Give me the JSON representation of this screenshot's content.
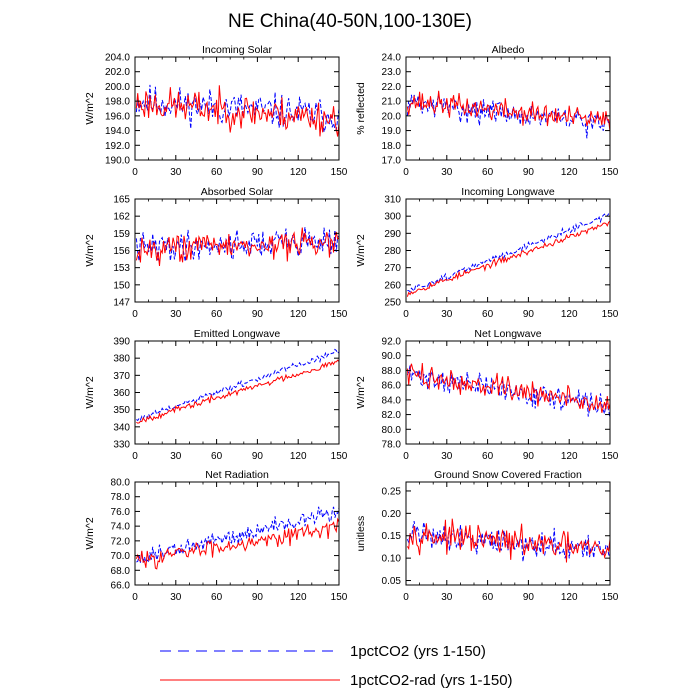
{
  "figure": {
    "title": "NE China(40-50N,100-130E)",
    "legend": [
      {
        "label": "1pctCO2 (yrs 1-150)",
        "color": "#0000ff",
        "dash": "dashed"
      },
      {
        "label": "1pctCO2-rad (yrs 1-150)",
        "color": "#ff0000",
        "dash": "solid"
      }
    ]
  },
  "chart_data": [
    {
      "type": "line",
      "title": "Incoming Solar",
      "ylabel": "W/m^2",
      "xlim": [
        0,
        150
      ],
      "ylim": [
        190,
        204
      ],
      "xticks": [
        "0",
        "30",
        "60",
        "90",
        "120",
        "150"
      ],
      "yticks": [
        "190.0",
        "192.0",
        "194.0",
        "196.0",
        "198.0",
        "200.0",
        "202.0",
        "204.0"
      ],
      "series": [
        {
          "name": "1pctCO2 (yrs 1-150)",
          "color": "#0000ff",
          "style": "dashed",
          "start": 198.0,
          "end": 196.0,
          "noise": 2.6,
          "seed": 11
        },
        {
          "name": "1pctCO2-rad (yrs 1-150)",
          "color": "#ff0000",
          "style": "solid",
          "start": 197.8,
          "end": 195.6,
          "noise": 2.6,
          "seed": 23
        }
      ]
    },
    {
      "type": "line",
      "title": "Albedo",
      "ylabel": "% reflected",
      "xlim": [
        0,
        150
      ],
      "ylim": [
        17,
        24
      ],
      "xticks": [
        "0",
        "30",
        "60",
        "90",
        "120",
        "150"
      ],
      "yticks": [
        "17.0",
        "18.0",
        "19.0",
        "20.0",
        "21.0",
        "22.0",
        "23.0",
        "24.0"
      ],
      "series": [
        {
          "name": "1pctCO2 (yrs 1-150)",
          "color": "#0000ff",
          "style": "dashed",
          "start": 20.9,
          "end": 19.4,
          "noise": 0.9,
          "seed": 31
        },
        {
          "name": "1pctCO2-rad (yrs 1-150)",
          "color": "#ff0000",
          "style": "solid",
          "start": 21.0,
          "end": 19.6,
          "noise": 0.9,
          "seed": 37
        }
      ]
    },
    {
      "type": "line",
      "title": "Absorbed Solar",
      "ylabel": "W/m^2",
      "xlim": [
        0,
        150
      ],
      "ylim": [
        147,
        165
      ],
      "xticks": [
        "0",
        "30",
        "60",
        "90",
        "120",
        "150"
      ],
      "yticks": [
        "147",
        "150",
        "153",
        "156",
        "159",
        "162",
        "165"
      ],
      "series": [
        {
          "name": "1pctCO2 (yrs 1-150)",
          "color": "#0000ff",
          "style": "dashed",
          "start": 156.5,
          "end": 157.8,
          "noise": 2.8,
          "seed": 41
        },
        {
          "name": "1pctCO2-rad (yrs 1-150)",
          "color": "#ff0000",
          "style": "solid",
          "start": 156.3,
          "end": 157.4,
          "noise": 2.8,
          "seed": 43
        }
      ]
    },
    {
      "type": "line",
      "title": "Incoming Longwave",
      "ylabel": "W/m^2",
      "xlim": [
        0,
        150
      ],
      "ylim": [
        250,
        310
      ],
      "xticks": [
        "0",
        "30",
        "60",
        "90",
        "120",
        "150"
      ],
      "yticks": [
        "250",
        "260",
        "270",
        "280",
        "290",
        "300",
        "310"
      ],
      "series": [
        {
          "name": "1pctCO2 (yrs 1-150)",
          "color": "#0000ff",
          "style": "dashed",
          "start": 256,
          "end": 301,
          "noise": 2.0,
          "seed": 51
        },
        {
          "name": "1pctCO2-rad (yrs 1-150)",
          "color": "#ff0000",
          "style": "solid",
          "start": 255,
          "end": 296,
          "noise": 2.0,
          "seed": 53
        }
      ]
    },
    {
      "type": "line",
      "title": "Emitted Longwave",
      "ylabel": "W/m^2",
      "xlim": [
        0,
        150
      ],
      "ylim": [
        330,
        390
      ],
      "xticks": [
        "0",
        "30",
        "60",
        "90",
        "120",
        "150"
      ],
      "yticks": [
        "330",
        "340",
        "350",
        "360",
        "370",
        "380",
        "390"
      ],
      "series": [
        {
          "name": "1pctCO2 (yrs 1-150)",
          "color": "#0000ff",
          "style": "dashed",
          "start": 344,
          "end": 384,
          "noise": 2.0,
          "seed": 61
        },
        {
          "name": "1pctCO2-rad (yrs 1-150)",
          "color": "#ff0000",
          "style": "solid",
          "start": 343,
          "end": 378,
          "noise": 2.0,
          "seed": 67
        }
      ]
    },
    {
      "type": "line",
      "title": "Net Longwave",
      "ylabel": "W/m^2",
      "xlim": [
        0,
        150
      ],
      "ylim": [
        78,
        92
      ],
      "xticks": [
        "0",
        "30",
        "60",
        "90",
        "120",
        "150"
      ],
      "yticks": [
        "78.0",
        "80.0",
        "82.0",
        "84.0",
        "86.0",
        "88.0",
        "90.0",
        "92.0"
      ],
      "series": [
        {
          "name": "1pctCO2 (yrs 1-150)",
          "color": "#0000ff",
          "style": "dashed",
          "start": 87.5,
          "end": 83.0,
          "noise": 1.8,
          "seed": 71
        },
        {
          "name": "1pctCO2-rad (yrs 1-150)",
          "color": "#ff0000",
          "style": "solid",
          "start": 87.5,
          "end": 83.2,
          "noise": 1.8,
          "seed": 73
        }
      ]
    },
    {
      "type": "line",
      "title": "Net Radiation",
      "ylabel": "W/m^2",
      "xlim": [
        0,
        150
      ],
      "ylim": [
        66,
        80
      ],
      "xticks": [
        "0",
        "30",
        "60",
        "90",
        "120",
        "150"
      ],
      "yticks": [
        "66.0",
        "68.0",
        "70.0",
        "72.0",
        "74.0",
        "76.0",
        "78.0",
        "80.0"
      ],
      "series": [
        {
          "name": "1pctCO2 (yrs 1-150)",
          "color": "#0000ff",
          "style": "dashed",
          "start": 69.5,
          "end": 76.0,
          "noise": 1.3,
          "seed": 81
        },
        {
          "name": "1pctCO2-rad (yrs 1-150)",
          "color": "#ff0000",
          "style": "solid",
          "start": 69.3,
          "end": 74.0,
          "noise": 1.3,
          "seed": 83
        }
      ]
    },
    {
      "type": "line",
      "title": "Ground Snow Covered Fraction",
      "ylabel": "unitless",
      "xlim": [
        0,
        150
      ],
      "ylim": [
        0.04,
        0.27
      ],
      "xticks": [
        "0",
        "30",
        "60",
        "90",
        "120",
        "150"
      ],
      "yticks": [
        "0.05",
        "0.10",
        "0.15",
        "0.20",
        "0.25"
      ],
      "series": [
        {
          "name": "1pctCO2 (yrs 1-150)",
          "color": "#0000ff",
          "style": "dashed",
          "start": 0.16,
          "end": 0.11,
          "noise": 0.035,
          "seed": 91
        },
        {
          "name": "1pctCO2-rad (yrs 1-150)",
          "color": "#ff0000",
          "style": "solid",
          "start": 0.155,
          "end": 0.115,
          "noise": 0.035,
          "seed": 97
        }
      ]
    }
  ]
}
